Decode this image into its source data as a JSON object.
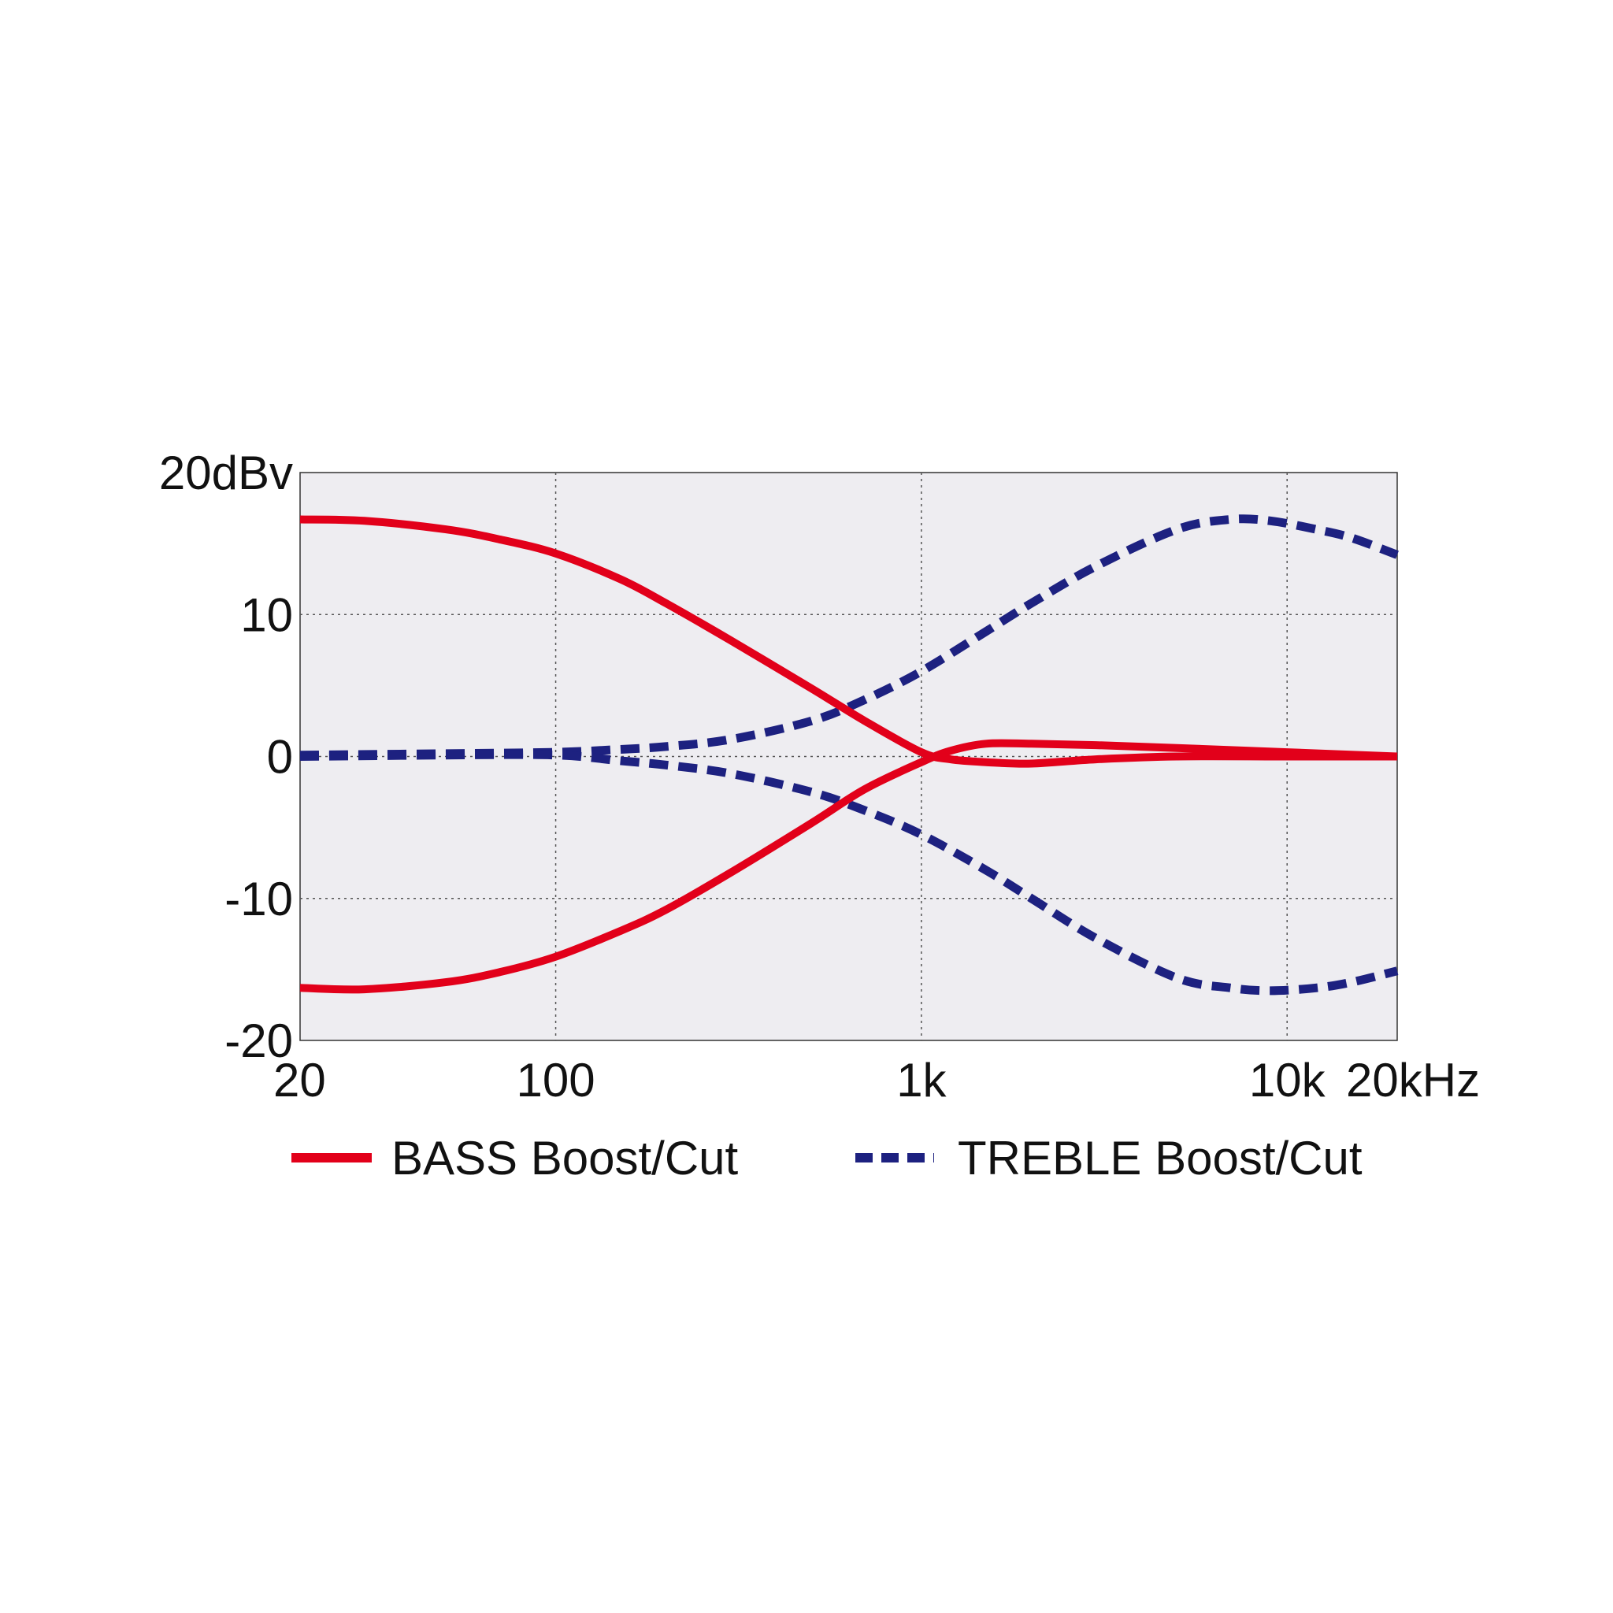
{
  "chart_data": {
    "type": "line",
    "title": "",
    "xlabel": "",
    "ylabel": "",
    "x_scale": "log",
    "xlim": [
      20,
      20000
    ],
    "ylim": [
      -20,
      20
    ],
    "grid": true,
    "legend_position": "bottom",
    "plot_background": "#eeedf1",
    "x_ticks": [
      {
        "value": 20,
        "label": "20"
      },
      {
        "value": 100,
        "label": "100"
      },
      {
        "value": 1000,
        "label": "1k"
      },
      {
        "value": 10000,
        "label": "10k"
      },
      {
        "value": 20000,
        "label": "20kHz"
      }
    ],
    "y_ticks": [
      {
        "value": 20,
        "label": "20dBv"
      },
      {
        "value": 10,
        "label": "10"
      },
      {
        "value": 0,
        "label": "0"
      },
      {
        "value": -10,
        "label": "-10"
      },
      {
        "value": -20,
        "label": "-20"
      }
    ],
    "legend": [
      {
        "label": "BASS Boost/Cut",
        "color": "#e2001a",
        "style": "solid"
      },
      {
        "label": "TREBLE Boost/Cut",
        "color": "#1d2180",
        "style": "dashed"
      }
    ],
    "series": [
      {
        "legend_index": 0,
        "color": "#e2001a",
        "style": "solid",
        "x": [
          20,
          30,
          50,
          70,
          100,
          150,
          200,
          300,
          500,
          700,
          1000,
          1200,
          1500,
          2000,
          3000,
          5000,
          10000,
          20000
        ],
        "y": [
          16.7,
          16.6,
          16.0,
          15.3,
          14.3,
          12.5,
          10.8,
          8.2,
          4.8,
          2.5,
          0.3,
          -0.2,
          -0.4,
          -0.5,
          -0.2,
          0.0,
          0.0,
          0.0
        ]
      },
      {
        "legend_index": 0,
        "color": "#e2001a",
        "style": "solid",
        "x": [
          20,
          30,
          50,
          70,
          100,
          150,
          200,
          300,
          500,
          700,
          1000,
          1200,
          1500,
          2000,
          3000,
          5000,
          10000,
          20000
        ],
        "y": [
          -16.3,
          -16.4,
          -15.9,
          -15.2,
          -14.1,
          -12.3,
          -10.8,
          -8.2,
          -4.7,
          -2.3,
          -0.4,
          0.4,
          0.9,
          0.9,
          0.8,
          0.6,
          0.3,
          0.0
        ]
      },
      {
        "legend_index": 1,
        "color": "#1d2180",
        "style": "dashed",
        "x": [
          20,
          50,
          100,
          150,
          200,
          300,
          500,
          700,
          1000,
          1500,
          2000,
          3000,
          5000,
          7000,
          9000,
          12000,
          15000,
          20000
        ],
        "y": [
          0.1,
          0.2,
          0.3,
          0.5,
          0.7,
          1.2,
          2.5,
          4.0,
          6.0,
          8.8,
          10.8,
          13.4,
          16.0,
          16.7,
          16.6,
          16.0,
          15.4,
          14.2
        ]
      },
      {
        "legend_index": 1,
        "color": "#1d2180",
        "style": "dashed",
        "x": [
          20,
          50,
          100,
          150,
          200,
          300,
          500,
          700,
          1000,
          1500,
          2000,
          3000,
          5000,
          7000,
          9000,
          12000,
          15000,
          20000
        ],
        "y": [
          0.0,
          0.1,
          0.1,
          -0.3,
          -0.6,
          -1.2,
          -2.5,
          -3.8,
          -5.5,
          -8.0,
          -10.0,
          -12.8,
          -15.6,
          -16.3,
          -16.5,
          -16.3,
          -15.9,
          -15.1
        ]
      }
    ]
  }
}
